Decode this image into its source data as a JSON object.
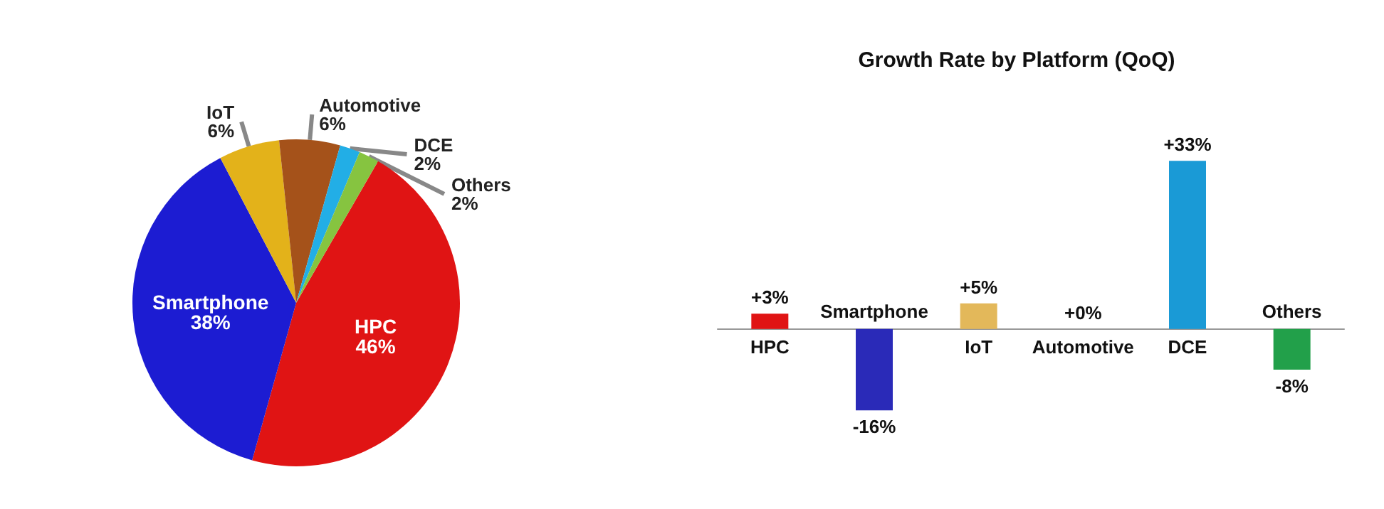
{
  "chart_data": [
    {
      "type": "pie",
      "categories": [
        "HPC",
        "Smartphone",
        "IoT",
        "Automotive",
        "DCE",
        "Others"
      ],
      "values": [
        46,
        38,
        6,
        6,
        2,
        2
      ],
      "value_labels": [
        "46%",
        "38%",
        "6%",
        "6%",
        "2%",
        "2%"
      ],
      "colors": [
        "#e01414",
        "#1c1cd2",
        "#e3b21a",
        "#a5521a",
        "#22aee6",
        "#86c440"
      ],
      "legend": false
    },
    {
      "type": "bar",
      "title": "Growth Rate by Platform (QoQ)",
      "categories": [
        "HPC",
        "Smartphone",
        "IoT",
        "Automotive",
        "DCE",
        "Others"
      ],
      "values": [
        3,
        -16,
        5,
        0,
        33,
        -8
      ],
      "value_labels": [
        "+3%",
        "-16%",
        "+5%",
        "+0%",
        "+33%",
        "-8%"
      ],
      "colors": [
        "#e01414",
        "#2a2ab8",
        "#e3b85a",
        "#888888",
        "#1a9ad6",
        "#22a04a"
      ],
      "legend": false,
      "grid": false
    }
  ]
}
